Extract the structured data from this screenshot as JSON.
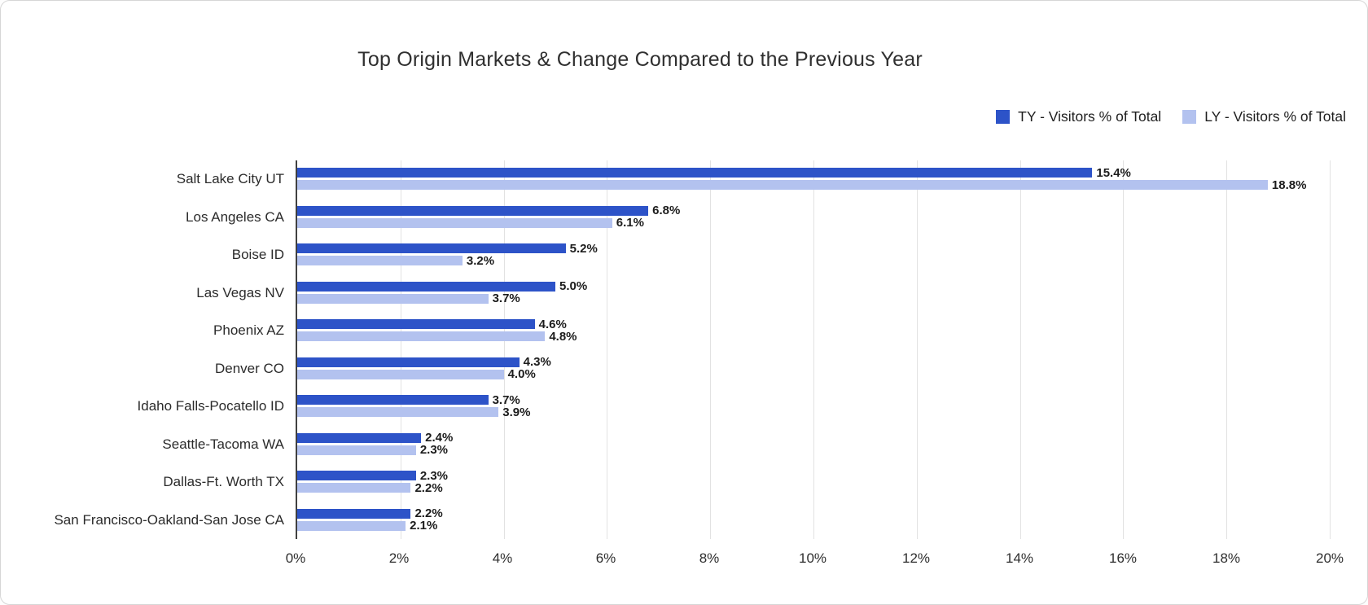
{
  "card": {
    "title": "Top Origin Markets & Change Compared to the Previous Year"
  },
  "chart_data": {
    "type": "bar",
    "orientation": "horizontal",
    "title": "Top Origin Markets & Change Compared to the Previous Year",
    "categories": [
      "Salt Lake City UT",
      "Los Angeles CA",
      "Boise ID",
      "Las Vegas NV",
      "Phoenix AZ",
      "Denver CO",
      "Idaho Falls-Pocatello ID",
      "Seattle-Tacoma WA",
      "Dallas-Ft. Worth TX",
      "San Francisco-Oakland-San Jose CA"
    ],
    "series": [
      {
        "name": "TY - Visitors % of Total",
        "color": "#2D53C8",
        "values": [
          15.4,
          6.8,
          5.2,
          5.0,
          4.6,
          4.3,
          3.7,
          2.4,
          2.3,
          2.2
        ]
      },
      {
        "name": "LY - Visitors % of Total",
        "color": "#B3C2EF",
        "values": [
          18.8,
          6.1,
          3.2,
          3.7,
          4.8,
          4.0,
          3.9,
          2.3,
          2.2,
          2.1
        ]
      }
    ],
    "value_suffix": "%",
    "value_decimals": 1,
    "xlim": [
      0,
      20
    ],
    "x_ticks": [
      "0%",
      "2%",
      "4%",
      "6%",
      "8%",
      "10%",
      "12%",
      "14%",
      "16%",
      "18%",
      "20%"
    ],
    "grid": true,
    "data_labels": true,
    "legend_position": "top-right",
    "axis_color": "#404040",
    "gridline_color": "#e2e2e2"
  }
}
